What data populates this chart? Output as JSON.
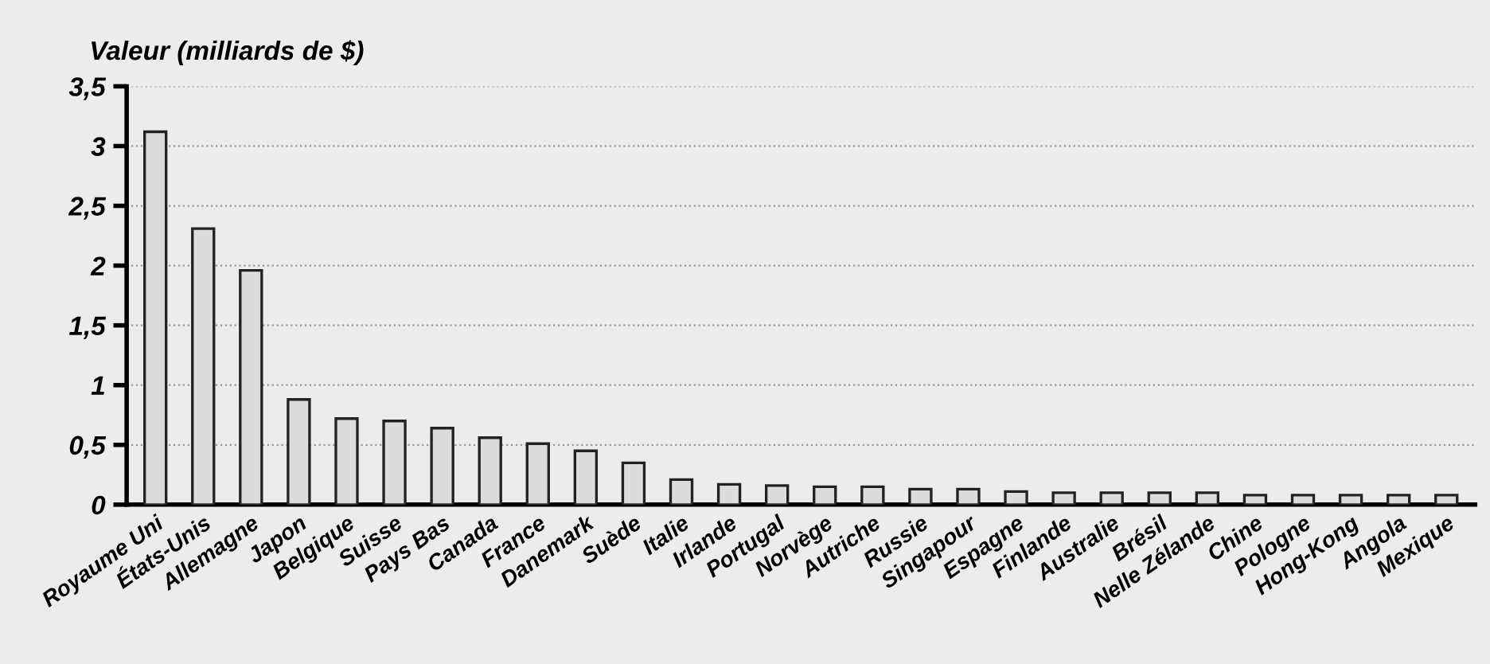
{
  "chart_data": {
    "type": "bar",
    "ylabel": "Valeur (milliards de $)",
    "categories": [
      "Royaume Uni",
      "États-Unis",
      "Allemagne",
      "Japon",
      "Belgique",
      "Suisse",
      "Pays Bas",
      "Canada",
      "France",
      "Danemark",
      "Suède",
      "Italie",
      "Irlande",
      "Portugal",
      "Norvège",
      "Autriche",
      "Russie",
      "Singapour",
      "Espagne",
      "Finlande",
      "Australie",
      "Brésil",
      "Nelle Zélande",
      "Chine",
      "Pologne",
      "Hong-Kong",
      "Angola",
      "Mexique"
    ],
    "values": [
      3.12,
      2.31,
      1.96,
      0.88,
      0.72,
      0.7,
      0.64,
      0.56,
      0.51,
      0.45,
      0.35,
      0.21,
      0.17,
      0.16,
      0.15,
      0.15,
      0.13,
      0.13,
      0.11,
      0.1,
      0.1,
      0.1,
      0.1,
      0.08,
      0.08,
      0.08,
      0.08,
      0.08
    ],
    "color": "#dcdcdc",
    "ylim": [
      0,
      3.5
    ],
    "yticks": [
      0,
      {
        "value": 0.5,
        "label": "0,5"
      },
      1,
      {
        "value": 1.5,
        "label": "1,5"
      },
      2,
      {
        "value": 2.5,
        "label": "2,5"
      },
      3,
      {
        "value": 3.5,
        "label": "3,5"
      }
    ],
    "grid": "y"
  }
}
